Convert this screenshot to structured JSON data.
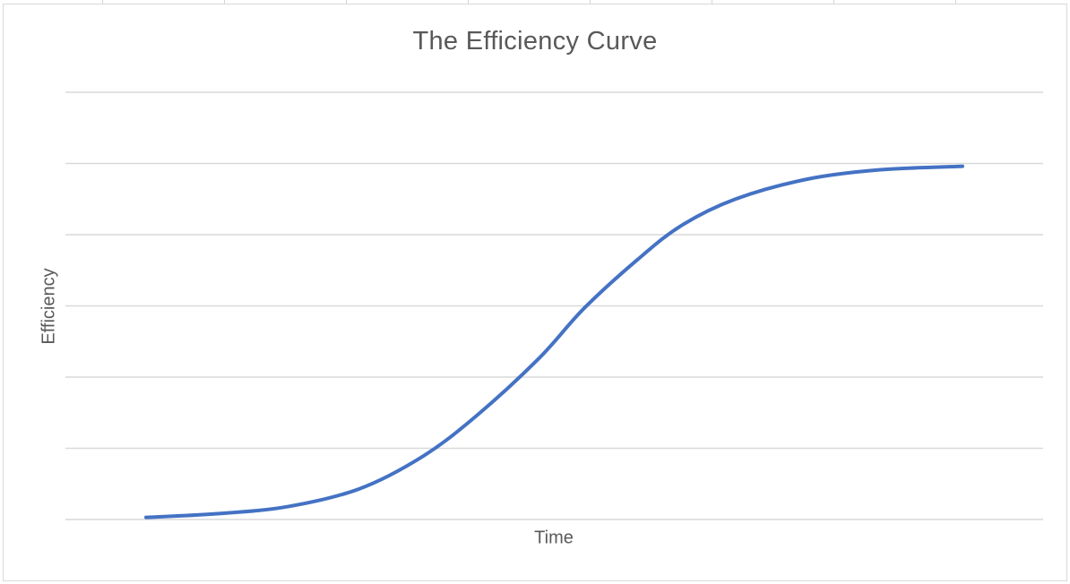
{
  "chart_data": {
    "type": "line",
    "title": "The Efficiency Curve",
    "xlabel": "Time",
    "ylabel": "Efficiency",
    "x": [
      0,
      8.5,
      17.3,
      26.1,
      33.8,
      40.4,
      48.1,
      53.6,
      60.2,
      65.6,
      72.2,
      81.0,
      89.8,
      100
    ],
    "series": [
      {
        "name": "Efficiency",
        "color": "#4472c4",
        "values": [
          0.03,
          0.08,
          0.18,
          0.43,
          0.88,
          1.45,
          2.26,
          2.96,
          3.65,
          4.13,
          4.5,
          4.78,
          4.91,
          4.96
        ]
      }
    ],
    "ylim": [
      0,
      6
    ],
    "gridlines": [
      0,
      1,
      2,
      3,
      4,
      5,
      6
    ],
    "grid": true,
    "legend": "none",
    "tick_labels_visible": false
  },
  "colors": {
    "line": "#4472c4",
    "gridline": "#d9d9d9",
    "text": "#595959"
  }
}
